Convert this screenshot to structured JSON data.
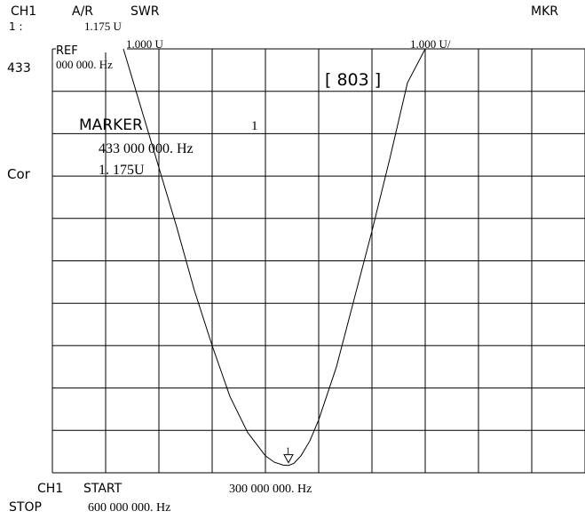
{
  "header": {
    "channel_label": "CH1",
    "channel_index": "1 :",
    "format_mode": "A/R",
    "format_type": "SWR",
    "marker_value_readout": "1.175 U",
    "mode_label": "MKR"
  },
  "left_annotations": {
    "center_freq_prefix": "433",
    "correction_label": "Cor"
  },
  "scale": {
    "ref_label": "REF",
    "ref_value": "1.000 U",
    "ref_freq_readout": "000  000. Hz",
    "scale_div": "1.000 U/"
  },
  "sweep_counter": "[ 803 ]",
  "marker": {
    "title": "MARKER",
    "number": "1",
    "frequency": "433 000  000. Hz",
    "value": "1. 175U",
    "symbol_label": "1"
  },
  "footer": {
    "channel_label": "CH1",
    "start_label": "START",
    "start_value": "300 000 000. Hz",
    "stop_label": "STOP",
    "stop_value": "600 000 000. Hz"
  },
  "chart_data": {
    "type": "line",
    "x_unit": "Hz",
    "xlim": [
      300000000,
      600000000
    ],
    "ylim": [
      1.0,
      11.0
    ],
    "grid": true,
    "x_divisions": 10,
    "y_divisions": 10,
    "series": [
      {
        "x": [
          340000000,
          350000000,
          360000000,
          370000000,
          380000000,
          390000000,
          400000000,
          410000000,
          420000000,
          425000000,
          430000000,
          433000000,
          436000000,
          440000000,
          445000000,
          450000000,
          460000000,
          470000000,
          480000000,
          490000000,
          500000000,
          510000000,
          520000000,
          530000000
        ],
        "y": [
          11.0,
          9.6,
          8.2,
          6.8,
          5.3,
          4.0,
          2.8,
          1.95,
          1.4,
          1.25,
          1.18,
          1.175,
          1.22,
          1.4,
          1.75,
          2.25,
          3.5,
          5.1,
          6.7,
          8.4,
          10.2,
          11.0,
          11.0,
          11.0
        ]
      }
    ],
    "markers": [
      {
        "label": "1",
        "x": 433000000,
        "y": 1.175
      }
    ]
  }
}
